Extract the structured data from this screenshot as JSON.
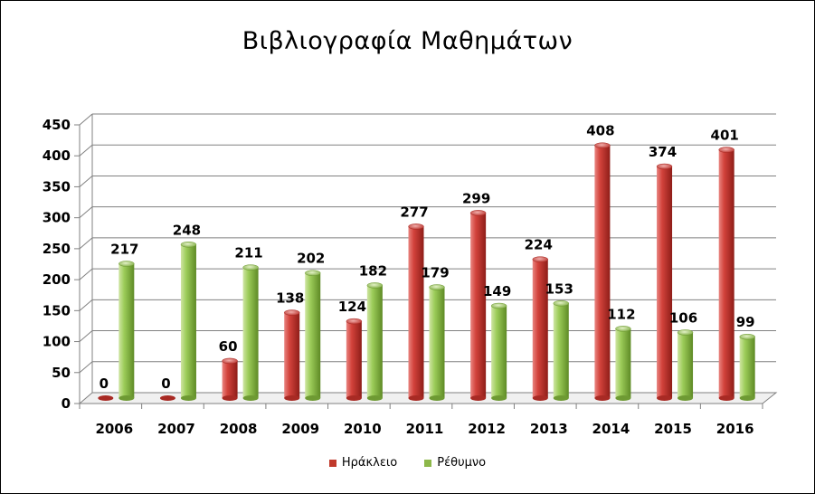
{
  "chart_data": {
    "type": "bar",
    "title": "Βιβλιογραφία Μαθημάτων",
    "categories": [
      "2006",
      "2007",
      "2008",
      "2009",
      "2010",
      "2011",
      "2012",
      "2013",
      "2014",
      "2015",
      "2016"
    ],
    "series": [
      {
        "name": "Ηράκλειο",
        "color": "#c0392b",
        "values": [
          0,
          0,
          60,
          138,
          124,
          277,
          299,
          224,
          408,
          374,
          401
        ]
      },
      {
        "name": "Ρέθυμνο",
        "color": "#8db84a",
        "values": [
          217,
          248,
          211,
          202,
          182,
          179,
          149,
          153,
          112,
          106,
          99
        ]
      }
    ],
    "y_ticks": [
      "0",
      "50",
      "100",
      "150",
      "200",
      "250",
      "300",
      "350",
      "400",
      "450"
    ],
    "ylim": [
      0,
      450
    ],
    "grid": true,
    "legend_position": "bottom"
  }
}
